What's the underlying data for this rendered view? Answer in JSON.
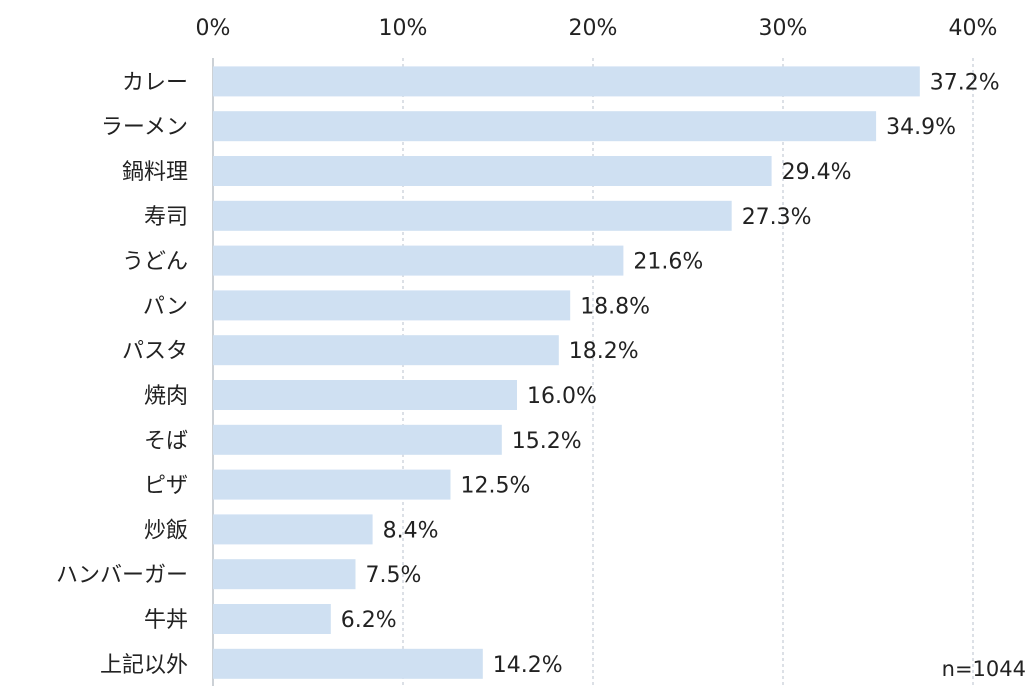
{
  "chart_data": {
    "type": "bar",
    "orientation": "horizontal",
    "title": "",
    "xlabel": "",
    "ylabel": "",
    "xlim": [
      0,
      40
    ],
    "ticks": [
      "0%",
      "10%",
      "20%",
      "30%",
      "40%"
    ],
    "tick_values": [
      0,
      10,
      20,
      30,
      40
    ],
    "grid": true,
    "bar_color": "#cfe0f2",
    "categories": [
      "カレー",
      "ラーメン",
      "鍋料理",
      "寿司",
      "うどん",
      "パン",
      "パスタ",
      "焼肉",
      "そば",
      "ピザ",
      "炒飯",
      "ハンバーガー",
      "牛丼",
      "上記以外"
    ],
    "values": [
      37.2,
      34.9,
      29.4,
      27.3,
      21.6,
      18.8,
      18.2,
      16.0,
      15.2,
      12.5,
      8.4,
      7.5,
      6.2,
      14.2
    ],
    "value_labels": [
      "37.2%",
      "34.9%",
      "29.4%",
      "27.3%",
      "21.6%",
      "18.8%",
      "18.2%",
      "16.0%",
      "15.2%",
      "12.5%",
      "8.4%",
      "7.5%",
      "6.2%",
      "14.2%"
    ],
    "annotation": "n=1044"
  }
}
